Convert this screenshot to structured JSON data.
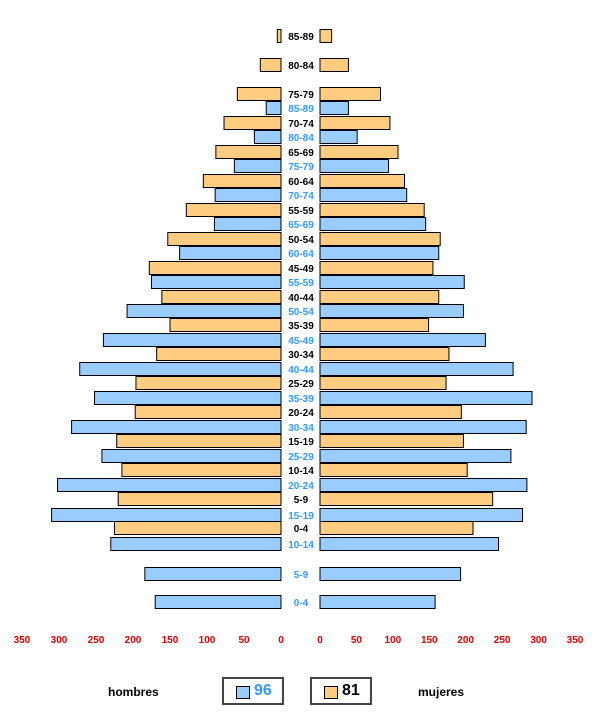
{
  "chart_data": {
    "type": "bar",
    "layout": "population-pyramid",
    "left_title": "hombres",
    "right_title": "mujeres",
    "xlim": [
      0,
      350
    ],
    "ticks": [
      350,
      300,
      250,
      200,
      150,
      100,
      50,
      0
    ],
    "colors": {
      "96": "#99ccff",
      "81": "#ffcc80",
      "tick_text": "#e00000",
      "label_96": "#3399ff",
      "label_81": "#000000",
      "edge": "#000000"
    },
    "series": [
      {
        "name": "96",
        "categories": [
          "85-89",
          "80-84",
          "75-79",
          "70-74",
          "65-69",
          "60-64",
          "55-59",
          "50-54",
          "45-49",
          "40-44",
          "35-39",
          "30-34",
          "25-29",
          "20-24",
          "15-19",
          "10-14",
          "5-9",
          "0-4"
        ],
        "hombres": [
          20,
          36,
          63,
          89,
          90,
          137,
          175,
          208,
          240,
          272,
          252,
          283,
          242,
          302,
          310,
          230,
          184,
          170
        ],
        "mujeres": [
          39,
          51,
          94,
          119,
          145,
          163,
          198,
          197,
          227,
          265,
          291,
          283,
          262,
          284,
          278,
          245,
          193,
          158
        ]
      },
      {
        "name": "81",
        "categories": [
          "85-89",
          "80-84",
          "75-79",
          "70-74",
          "65-69",
          "60-64",
          "55-59",
          "50-54",
          "45-49",
          "40-44",
          "35-39",
          "30-34",
          "25-29",
          "20-24",
          "15-19",
          "10-14",
          "5-9",
          "0-4"
        ],
        "hombres": [
          5,
          28,
          59,
          77,
          88,
          105,
          128,
          153,
          178,
          161,
          150,
          168,
          196,
          197,
          222,
          215,
          220,
          225
        ],
        "mujeres": [
          16,
          39,
          83,
          96,
          107,
          116,
          143,
          165,
          155,
          163,
          149,
          177,
          173,
          194,
          197,
          202,
          237,
          210
        ]
      }
    ]
  },
  "legend": {
    "left_label": "hombres",
    "right_label": "mujeres",
    "item_96": "96",
    "item_81": "81"
  }
}
